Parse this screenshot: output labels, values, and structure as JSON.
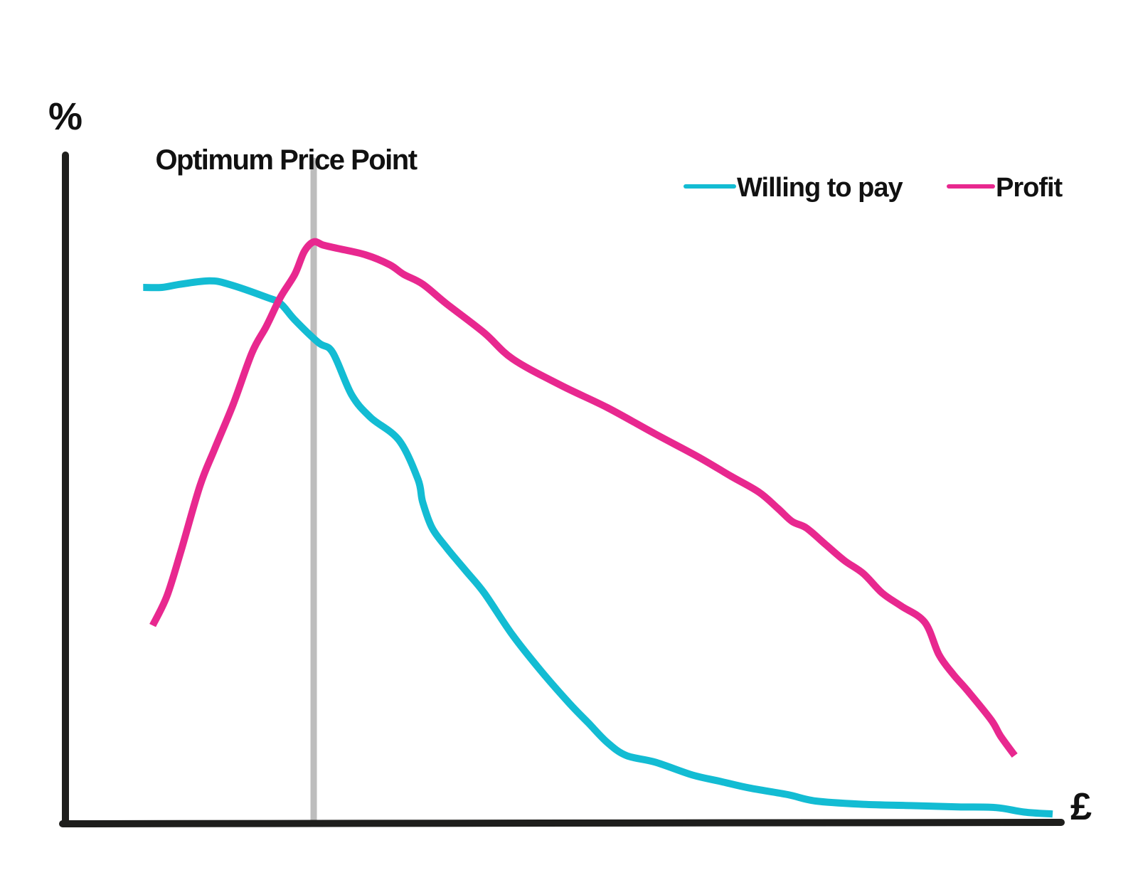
{
  "chart_data": {
    "type": "line",
    "title": "",
    "ylabel": "%",
    "xlabel": "£",
    "xlim": [
      0,
      100
    ],
    "ylim": [
      0,
      100
    ],
    "grid": false,
    "legend_position": "top-right",
    "annotation": {
      "text": "Optimum Price Point",
      "x": 22
    },
    "series": [
      {
        "name": "Willing to pay",
        "color": "#13BCD3",
        "x": [
          4,
          6,
          8,
          11,
          13,
          17,
          18.5,
          20,
          22.5,
          24,
          26,
          28,
          31,
          33,
          33.5,
          34.5,
          36,
          38,
          40,
          43,
          46,
          49,
          51,
          53,
          55,
          58,
          62,
          65,
          68,
          72,
          75,
          80,
          85,
          90,
          94,
          97,
          100
        ],
        "y": [
          82.5,
          82.5,
          83,
          83.5,
          83,
          81,
          80,
          77.5,
          74,
          72.5,
          66,
          62.5,
          59,
          53,
          49.5,
          45.5,
          42.5,
          39,
          35.5,
          29,
          23.5,
          18.5,
          15.5,
          12.5,
          10.5,
          9.5,
          7.5,
          6.5,
          5.5,
          4.5,
          3.5,
          3,
          2.8,
          2.6,
          2.5,
          1.8,
          1.5
        ]
      },
      {
        "name": "Profit",
        "color": "#E8288F",
        "x": [
          5,
          6.5,
          8,
          10,
          11.5,
          13.5,
          15.5,
          17,
          18.5,
          20,
          21,
          22,
          23,
          24.5,
          27.5,
          30,
          31.5,
          33.5,
          36,
          40,
          43,
          48,
          53,
          58,
          62.5,
          66,
          69,
          71,
          72.5,
          74,
          76,
          78,
          80,
          82,
          84,
          86.5,
          88,
          89.5,
          91,
          93.5,
          94.5,
          96
        ],
        "y": [
          30.5,
          35,
          42,
          52,
          57.5,
          64.5,
          72.5,
          76.5,
          81,
          84.5,
          88,
          89.5,
          89,
          88.5,
          87.5,
          86,
          84.5,
          83,
          80,
          75.5,
          71.5,
          67.5,
          64,
          60,
          56.5,
          53.5,
          51,
          48.5,
          46.5,
          45.5,
          43,
          40.5,
          38.5,
          35.5,
          33.5,
          31,
          26,
          23,
          20.5,
          16,
          13.5,
          10.5
        ]
      }
    ]
  }
}
